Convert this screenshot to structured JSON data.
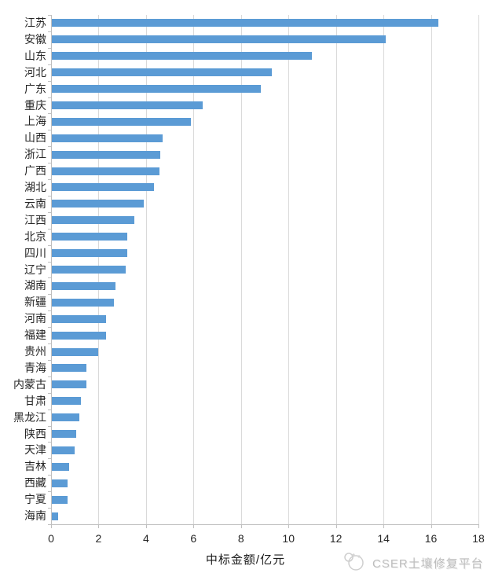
{
  "chart_data": {
    "type": "bar",
    "orientation": "horizontal",
    "title": "",
    "xlabel": "中标金额/亿元",
    "ylabel": "",
    "xlim": [
      0,
      18
    ],
    "x_ticks": [
      0,
      2,
      4,
      6,
      8,
      10,
      12,
      14,
      16,
      18
    ],
    "grid": true,
    "legend": false,
    "bar_color": "#5b9bd5",
    "gridline_color": "#d9d9d9",
    "axis_color": "#bfbfbf",
    "categories": [
      "江苏",
      "安徽",
      "山东",
      "河北",
      "广东",
      "重庆",
      "上海",
      "山西",
      "浙江",
      "广西",
      "湖北",
      "云南",
      "江西",
      "北京",
      "四川",
      "辽宁",
      "湖南",
      "新疆",
      "河南",
      "福建",
      "贵州",
      "青海",
      "内蒙古",
      "甘肃",
      "黑龙江",
      "陕西",
      "天津",
      "吉林",
      "西藏",
      "宁夏",
      "海南"
    ],
    "values": [
      16.3,
      14.1,
      11.0,
      9.3,
      8.85,
      6.4,
      5.9,
      4.7,
      4.6,
      4.55,
      4.35,
      3.9,
      3.5,
      3.2,
      3.2,
      3.15,
      2.7,
      2.65,
      2.3,
      2.3,
      2.0,
      1.5,
      1.5,
      1.25,
      1.2,
      1.05,
      1.0,
      0.75,
      0.7,
      0.7,
      0.3
    ]
  },
  "watermark": {
    "text": "CSER土壤修复平台",
    "icon": "panda-logo"
  }
}
